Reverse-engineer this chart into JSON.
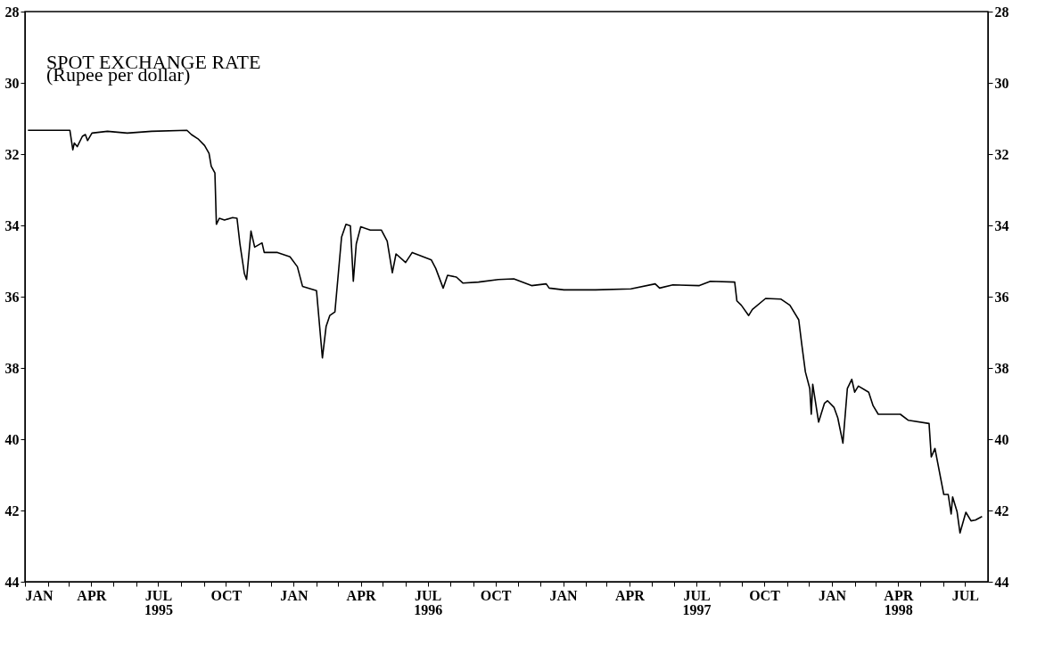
{
  "chart_data": {
    "type": "line",
    "title": "SPOT EXCHANGE RATE",
    "subtitle": "(Rupee per dollar)",
    "x": [
      "1995-01-05",
      "1995-03-03",
      "1995-03-07",
      "1995-03-09",
      "1995-03-13",
      "1995-03-20",
      "1995-03-24",
      "1995-03-27",
      "1995-04-02",
      "1995-04-23",
      "1995-05-20",
      "1995-06-22",
      "1995-08-09",
      "1995-08-15",
      "1995-08-24",
      "1995-09-02",
      "1995-09-08",
      "1995-09-11",
      "1995-09-16",
      "1995-09-18",
      "1995-09-22",
      "1995-09-29",
      "1995-10-10",
      "1995-10-16",
      "1995-10-20",
      "1995-10-26",
      "1995-10-29",
      "1995-11-04",
      "1995-11-09",
      "1995-11-19",
      "1995-11-22",
      "1995-12-10",
      "1995-12-27",
      "1996-01-06",
      "1996-01-13",
      "1996-02-01",
      "1996-02-09",
      "1996-02-14",
      "1996-02-19",
      "1996-02-26",
      "1996-03-06",
      "1996-03-12",
      "1996-03-18",
      "1996-03-22",
      "1996-03-26",
      "1996-04-01",
      "1996-04-14",
      "1996-04-29",
      "1996-05-07",
      "1996-05-14",
      "1996-05-19",
      "1996-06-01",
      "1996-06-10",
      "1996-07-06",
      "1996-07-12",
      "1996-07-22",
      "1996-07-28",
      "1996-08-09",
      "1996-08-18",
      "1996-09-08",
      "1996-10-05",
      "1996-10-26",
      "1996-11-19",
      "1996-12-09",
      "1996-12-13",
      "1997-01-02",
      "1997-02-14",
      "1997-04-03",
      "1997-05-06",
      "1997-05-12",
      "1997-05-30",
      "1997-07-05",
      "1997-07-20",
      "1997-08-22",
      "1997-08-25",
      "1997-08-31",
      "1997-09-10",
      "1997-09-15",
      "1997-10-03",
      "1997-10-24",
      "1997-11-05",
      "1997-11-17",
      "1997-11-21",
      "1997-11-26",
      "1997-12-02",
      "1997-12-04",
      "1997-12-06",
      "1997-12-14",
      "1997-12-22",
      "1997-12-26",
      "1998-01-04",
      "1998-01-09",
      "1998-01-16",
      "1998-01-22",
      "1998-01-28",
      "1998-02-01",
      "1998-02-06",
      "1998-02-20",
      "1998-02-26",
      "1998-03-05",
      "1998-04-04",
      "1998-04-15",
      "1998-05-13",
      "1998-05-16",
      "1998-05-21",
      "1998-06-02",
      "1998-06-08",
      "1998-06-12",
      "1998-06-14",
      "1998-06-20",
      "1998-06-24",
      "1998-07-02",
      "1998-07-09",
      "1998-07-15",
      "1998-07-24"
    ],
    "series": [
      {
        "color": "#000000",
        "values": [
          31.33,
          31.33,
          31.88,
          31.69,
          31.79,
          31.5,
          31.45,
          31.62,
          31.41,
          31.36,
          31.41,
          31.36,
          31.33,
          31.45,
          31.57,
          31.76,
          31.98,
          32.34,
          32.53,
          33.97,
          33.8,
          33.85,
          33.78,
          33.8,
          34.52,
          35.35,
          35.52,
          34.16,
          34.61,
          34.49,
          34.76,
          34.76,
          34.88,
          35.16,
          35.71,
          35.83,
          37.72,
          36.84,
          36.53,
          36.43,
          34.33,
          33.97,
          34.01,
          35.57,
          34.52,
          34.04,
          34.13,
          34.13,
          34.44,
          35.33,
          34.8,
          35.04,
          34.76,
          34.97,
          35.21,
          35.76,
          35.4,
          35.45,
          35.62,
          35.59,
          35.52,
          35.5,
          35.69,
          35.64,
          35.76,
          35.81,
          35.81,
          35.78,
          35.64,
          35.76,
          35.67,
          35.69,
          35.57,
          35.59,
          36.12,
          36.24,
          36.53,
          36.36,
          36.05,
          36.07,
          36.24,
          36.65,
          37.32,
          38.11,
          38.58,
          39.3,
          38.46,
          39.52,
          38.99,
          38.92,
          39.11,
          39.4,
          40.11,
          38.58,
          38.32,
          38.68,
          38.51,
          38.68,
          39.06,
          39.3,
          39.3,
          39.47,
          39.56,
          40.5,
          40.26,
          41.55,
          41.55,
          42.1,
          41.62,
          42.03,
          42.63,
          42.05,
          42.29,
          42.27,
          42.17
        ]
      }
    ],
    "xlim": [
      "1995-01-01",
      "1998-08-01"
    ],
    "xticks": [
      {
        "value": "1995-01-01",
        "label": "JAN"
      },
      {
        "value": "1995-02-01",
        "label": null
      },
      {
        "value": "1995-03-01",
        "label": null
      },
      {
        "value": "1995-04-01",
        "label": "APR"
      },
      {
        "value": "1995-05-01",
        "label": null
      },
      {
        "value": "1995-06-01",
        "label": null
      },
      {
        "value": "1995-07-01",
        "label": "JUL\n1995"
      },
      {
        "value": "1995-08-01",
        "label": null
      },
      {
        "value": "1995-09-01",
        "label": null
      },
      {
        "value": "1995-10-01",
        "label": "OCT"
      },
      {
        "value": "1995-11-01",
        "label": null
      },
      {
        "value": "1995-12-01",
        "label": null
      },
      {
        "value": "1996-01-01",
        "label": "JAN"
      },
      {
        "value": "1996-02-01",
        "label": null
      },
      {
        "value": "1996-03-01",
        "label": null
      },
      {
        "value": "1996-04-01",
        "label": "APR"
      },
      {
        "value": "1996-05-01",
        "label": null
      },
      {
        "value": "1996-06-01",
        "label": null
      },
      {
        "value": "1996-07-01",
        "label": "JUL\n1996"
      },
      {
        "value": "1996-08-01",
        "label": null
      },
      {
        "value": "1996-09-01",
        "label": null
      },
      {
        "value": "1996-10-01",
        "label": "OCT"
      },
      {
        "value": "1996-11-01",
        "label": null
      },
      {
        "value": "1996-12-01",
        "label": null
      },
      {
        "value": "1997-01-01",
        "label": "JAN"
      },
      {
        "value": "1997-02-01",
        "label": null
      },
      {
        "value": "1997-03-01",
        "label": null
      },
      {
        "value": "1997-04-01",
        "label": "APR"
      },
      {
        "value": "1997-05-01",
        "label": null
      },
      {
        "value": "1997-06-01",
        "label": null
      },
      {
        "value": "1997-07-01",
        "label": "JUL\n1997"
      },
      {
        "value": "1997-08-01",
        "label": null
      },
      {
        "value": "1997-09-01",
        "label": null
      },
      {
        "value": "1997-10-01",
        "label": "OCT"
      },
      {
        "value": "1997-11-01",
        "label": null
      },
      {
        "value": "1997-12-01",
        "label": null
      },
      {
        "value": "1998-01-01",
        "label": "JAN"
      },
      {
        "value": "1998-02-01",
        "label": null
      },
      {
        "value": "1998-03-01",
        "label": null
      },
      {
        "value": "1998-04-01",
        "label": "APR\n1998"
      },
      {
        "value": "1998-05-01",
        "label": null
      },
      {
        "value": "1998-06-01",
        "label": null
      },
      {
        "value": "1998-07-01",
        "label": "JUL"
      }
    ],
    "ylim": [
      44,
      28
    ],
    "yticks": [
      28,
      30,
      32,
      34,
      36,
      38,
      40,
      42,
      44
    ],
    "y2lim": [
      44,
      28
    ],
    "y2ticks": [
      28,
      30,
      32,
      34,
      36,
      38,
      40,
      42,
      44
    ],
    "grid": false,
    "marker": "none",
    "line_style": "solid"
  }
}
